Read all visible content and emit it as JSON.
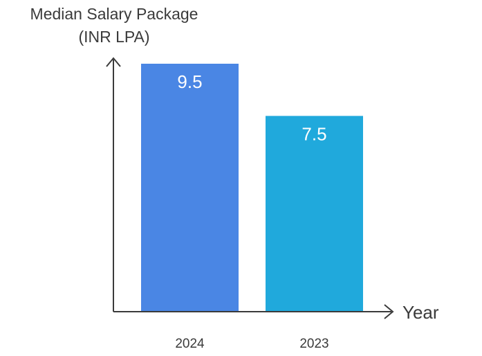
{
  "chart_data": {
    "type": "bar",
    "categories": [
      "2024",
      "2023"
    ],
    "values": [
      9.5,
      7.5
    ],
    "value_labels": [
      "9.5",
      "7.5"
    ],
    "ylabel_lines": [
      "Median Salary Package",
      "(INR LPA)"
    ],
    "xlabel": "Year",
    "ylim": [
      0,
      9.5
    ],
    "grid": false,
    "colors": [
      "#4a86e4",
      "#20a9dc"
    ],
    "axis_color": "#3a3a3a"
  }
}
